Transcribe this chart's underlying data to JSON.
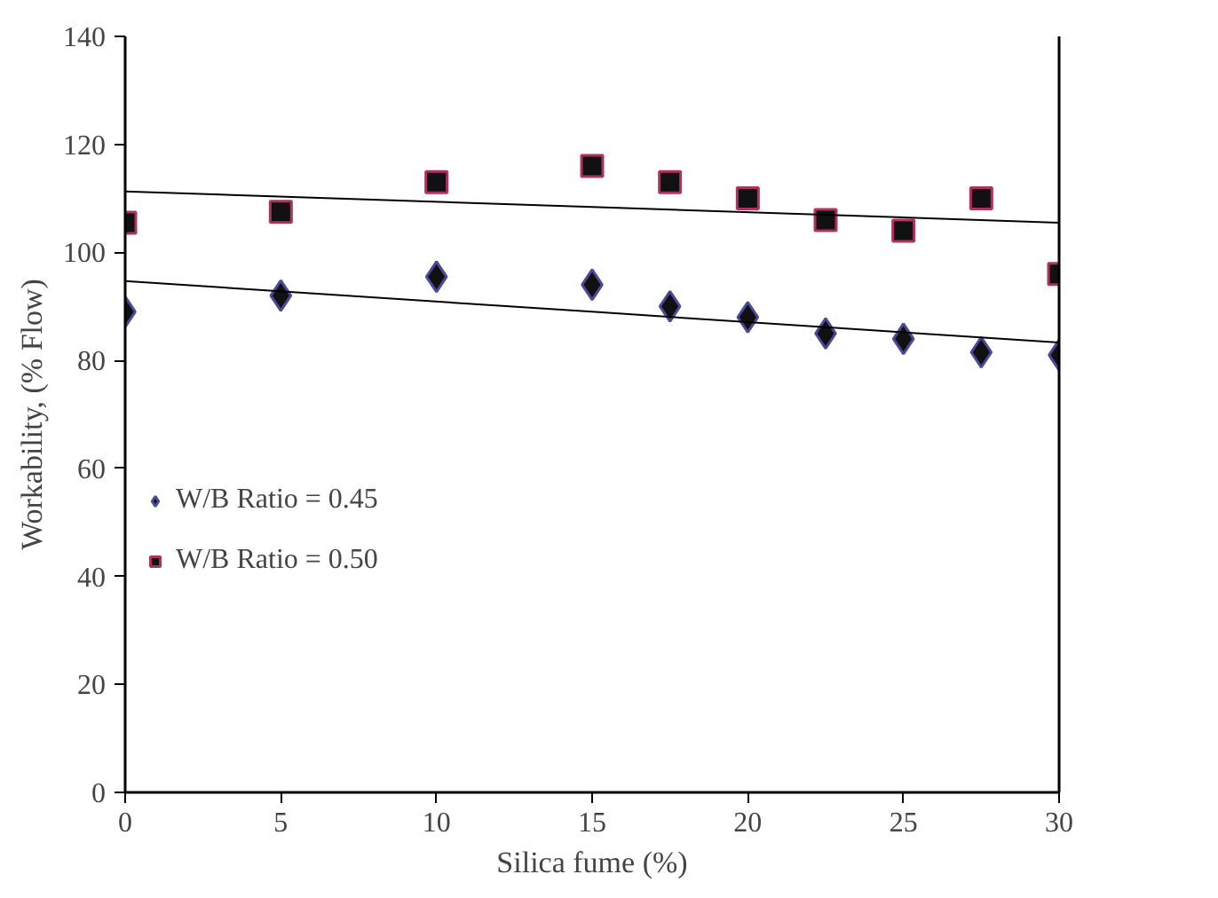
{
  "chart_data": {
    "type": "scatter",
    "xlabel": "Silica fume (%)",
    "ylabel": "Workability, (% Flow)",
    "x": [
      0,
      5,
      10,
      15,
      17.5,
      20,
      22.5,
      25,
      27.5,
      30
    ],
    "series": [
      {
        "name": "W/B Ratio = 0.45",
        "color": "#111111",
        "marker": "diamond",
        "values": [
          89,
          92,
          95.5,
          94,
          90,
          88,
          85,
          84,
          81.5,
          81
        ]
      },
      {
        "name": "W/B Ratio = 0.50",
        "color": "#111111",
        "marker": "square",
        "values": [
          105.5,
          107.5,
          113,
          116,
          113,
          110,
          106,
          104,
          110,
          96
        ]
      },
      {
        "type": "line",
        "color": "#000000",
        "x": [
          0,
          15,
          30
        ],
        "values": [
          94.7,
          89,
          83.3
        ]
      },
      {
        "type": "line",
        "color": "#000000",
        "x": [
          0,
          15,
          30
        ],
        "values": [
          111.3,
          108.4,
          105.5
        ]
      }
    ],
    "xlim": [
      0,
      30
    ],
    "xticks": [
      0,
      5,
      10,
      15,
      20,
      25,
      30
    ],
    "ylim": [
      0,
      140
    ],
    "yticks": [
      0,
      20,
      40,
      60,
      80,
      100,
      120,
      140
    ],
    "legend": "left",
    "grid": false
  }
}
